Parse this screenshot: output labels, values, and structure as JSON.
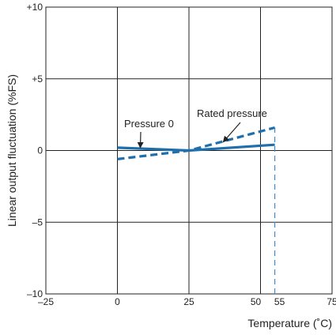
{
  "chart_data": {
    "type": "line",
    "xlabel": "Temperature (˚C)",
    "ylabel": "Linear output fluctuation (%FS)",
    "xlim": [
      -25,
      75
    ],
    "ylim": [
      -10,
      10
    ],
    "x_ticks": [
      -25,
      0,
      25,
      50,
      55,
      75
    ],
    "x_tick_labels": [
      "–25",
      "0",
      "25",
      "50",
      "55",
      "75"
    ],
    "y_ticks": [
      10,
      5,
      0,
      -5,
      -10
    ],
    "y_tick_labels": [
      "+10",
      "+5",
      "0",
      "–5",
      "–10"
    ],
    "x_gridlines": [
      0,
      25,
      50
    ],
    "y_gridlines": [
      5,
      0,
      -5
    ],
    "grid": true,
    "series": [
      {
        "name": "Pressure 0",
        "style": "solid",
        "x": [
          0,
          25,
          55
        ],
        "y": [
          0.2,
          0,
          0.4
        ]
      },
      {
        "name": "Rated pressure",
        "style": "dashed",
        "x": [
          0,
          25,
          55
        ],
        "y": [
          -0.6,
          0,
          1.6
        ]
      }
    ],
    "reference_line": {
      "x": 55,
      "style": "dashed",
      "y_from": -10,
      "y_to": 1.6
    },
    "annotations": [
      {
        "text": "Pressure 0",
        "series": "Pressure 0",
        "arrow_to": [
          8,
          0.2
        ]
      },
      {
        "text": "Rated pressure",
        "series": "Rated pressure",
        "arrow_to": [
          37,
          0.6
        ]
      }
    ],
    "colors": {
      "series": "#1f6fad",
      "reference_line": "#3d8fd1",
      "grid": "#222222",
      "text": "#222222"
    }
  }
}
